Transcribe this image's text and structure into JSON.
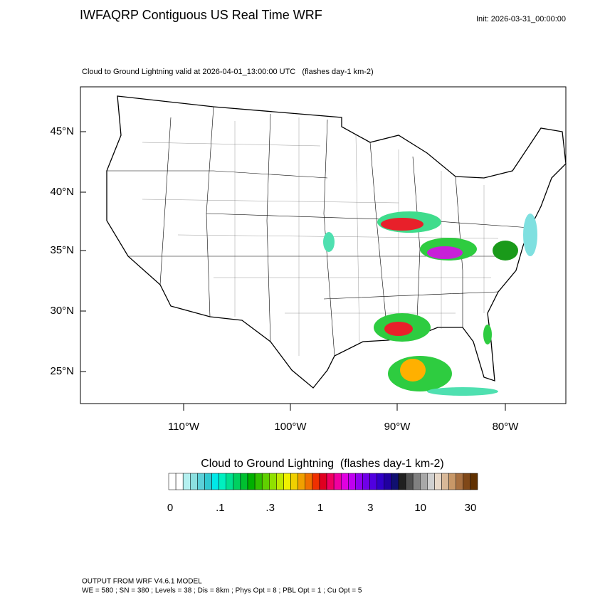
{
  "header": {
    "title": "IWFAQRP Contiguous US Real Time WRF",
    "init": "Init: 2026-03-31_00:00:00"
  },
  "map": {
    "subtitle": "Cloud to Ground Lightning valid at 2026-04-01_13:00:00 UTC   (flashes day-1 km-2)",
    "lat_labels": [
      "45°N",
      "40°N",
      "35°N",
      "30°N",
      "25°N"
    ],
    "lon_labels": [
      "110°W",
      "100°W",
      "90°W",
      "80°W"
    ]
  },
  "colorbar": {
    "title": "Cloud to Ground Lightning  (flashes day-1 km-2)",
    "labels": [
      "0",
      ".1",
      ".3",
      "1",
      "3",
      "10",
      "30"
    ]
  },
  "footer": {
    "line1": "OUTPUT FROM WRF V4.6.1 MODEL",
    "line2": "WE = 580 ; SN = 380 ; Levels = 38 ; Dis = 8km ; Phys Opt = 8 ; PBL Opt = 1 ; Cu Opt = 5"
  }
}
